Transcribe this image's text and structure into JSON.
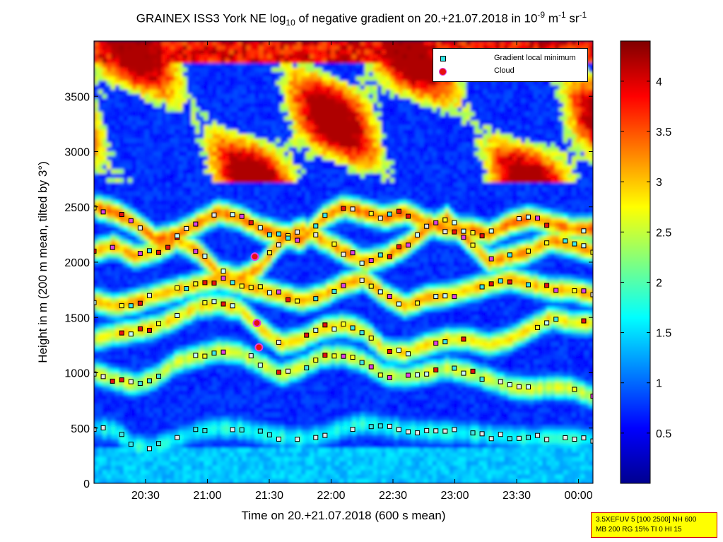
{
  "chart_data": {
    "type": "heatmap",
    "title_parts": {
      "pre": "GRAINEX ISS3 York NE log",
      "sub": "10",
      "mid": " of negative gradient on 20.+21.07.2018 in 10",
      "exp1": "-9",
      "mid2": " m",
      "exp2": "-1",
      "mid3": " sr",
      "exp3": "-1"
    },
    "xlabel": "Time on 20.+21.07.2018 (600 s mean)",
    "ylabel": "Height in m (200 m mean, tilted by 3°)",
    "xlim": [
      "20:05",
      "00:07"
    ],
    "ylim": [
      0,
      4000
    ],
    "x_ticks": [
      "20:30",
      "21:00",
      "21:30",
      "22:00",
      "22:30",
      "23:00",
      "23:30",
      "00:00"
    ],
    "y_ticks": [
      0,
      500,
      1000,
      1500,
      2000,
      2500,
      3000,
      3500
    ],
    "colorbar": {
      "range": [
        0,
        4.4
      ],
      "ticks": [
        "0.5",
        "1",
        "1.5",
        "2",
        "2.5",
        "3",
        "3.5",
        "4"
      ],
      "colormap": "jet"
    },
    "legend": {
      "placement": "top-right",
      "entries": [
        "Gradient local minimum",
        "Cloud"
      ]
    },
    "layers": [
      {
        "h": [
          500,
          480,
          330,
          330,
          400,
          470,
          500,
          490,
          450,
          420,
          400,
          430,
          500,
          540,
          510,
          480,
          470,
          460,
          450,
          430,
          420,
          400,
          410,
          400,
          400
        ]
      },
      {
        "h": [
          1000,
          940,
          890,
          960,
          1100,
          1150,
          1200,
          1180,
          1080,
          980,
          1050,
          1150,
          1160,
          1100,
          980,
          960,
          1000,
          1040,
          1000,
          940,
          870,
          850,
          870,
          860,
          780
        ]
      },
      {
        "h": [
          1300,
          1350,
          1380,
          1420,
          1500,
          1600,
          1620,
          1580,
          1400,
          1260,
          1300,
          1400,
          1430,
          1380,
          1200,
          1180,
          1250,
          1300,
          1300,
          1250,
          1300,
          1400,
          1500,
          1450,
          1450
        ]
      },
      {
        "h": [
          1650,
          1600,
          1640,
          1700,
          1750,
          1800,
          1850,
          1800,
          1750,
          1700,
          1650,
          1700,
          1800,
          1850,
          1700,
          1600,
          1680,
          1700,
          1750,
          1800,
          1850,
          1800,
          1750,
          1750,
          1700
        ]
      },
      {
        "h": [
          2100,
          2150,
          2050,
          2100,
          2200,
          2100,
          1900,
          1850,
          1950,
          2200,
          2300,
          2200,
          2100,
          2000,
          2050,
          2150,
          2300,
          2400,
          2200,
          2000,
          2050,
          2100,
          2200,
          2150,
          2100
        ]
      },
      {
        "h": [
          2500,
          2450,
          2350,
          2200,
          2250,
          2350,
          2450,
          2400,
          2300,
          2250,
          2200,
          2400,
          2500,
          2450,
          2400,
          2450,
          2350,
          2300,
          2300,
          2250,
          2350,
          2400,
          2350,
          2300,
          2300
        ]
      }
    ],
    "clouds": [
      {
        "t": "21:23",
        "h": 2050
      },
      {
        "t": "21:24",
        "h": 1450
      },
      {
        "t": "21:25",
        "h": 1230
      }
    ]
  },
  "infobox": {
    "line1": "3.5XEFUV 5 [100 2500] NH 600",
    "line2": "MB 200 RG 15% TI 0 HI 15"
  }
}
